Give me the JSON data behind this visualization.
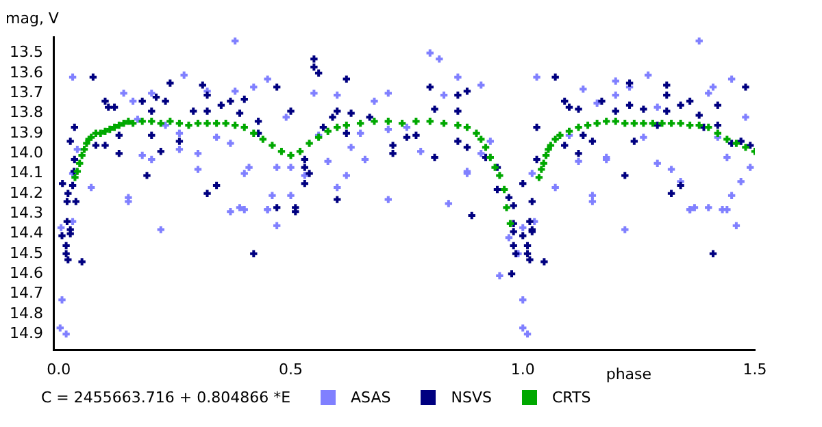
{
  "chart_data": {
    "type": "scatter",
    "xlabel": "phase",
    "ylabel": "mag, V",
    "marker": "cross",
    "legend": "bottom",
    "grid": false,
    "annotations": [
      "C = 2455663.716 + 0.804866 *E"
    ],
    "xlim": [
      -0.01,
      1.5
    ],
    "xticks": [
      {
        "value": 0,
        "label": "0.0"
      },
      0.5,
      {
        "value": 1,
        "label": "1.0"
      },
      1.5
    ],
    "ylim": [
      14.98,
      13.42
    ],
    "yticks": [
      13.5,
      13.6,
      13.7,
      13.8,
      13.9,
      {
        "value": 14,
        "label": "14.0"
      },
      14.1,
      14.2,
      14.3,
      14.4,
      14.5,
      14.6,
      14.7,
      14.8,
      14.9
    ],
    "series": [
      {
        "name": "ASAS",
        "color": "#8080ff",
        "x": [
          0.03,
          0.38,
          0.27,
          0.14,
          0.04,
          0.07,
          0.03,
          0.15,
          0.15,
          0.16,
          0.17,
          0.2,
          0.18,
          0.2,
          0.23,
          0.26,
          0.26,
          0.3,
          0.3,
          0.32,
          0.34,
          0.38,
          0.37,
          0.41,
          0.4,
          0.4,
          0.42,
          0.45,
          0.45,
          0.46,
          0.47,
          0.49,
          0.5,
          0.5,
          0.53,
          0.55,
          0.56,
          0.58,
          0.6,
          0.6,
          0.62,
          0.63,
          0.65,
          0.66,
          0.68,
          0.71,
          0.71,
          0.71,
          0.8,
          0.82,
          0.83,
          0.78,
          0.75,
          0.84,
          0.86,
          0.88,
          0.88,
          0.91,
          0.91,
          0.93,
          1.03,
          1.02,
          1.07,
          1.13,
          1.1,
          1.12,
          1.15,
          1.15,
          1.16,
          1.18,
          1.18,
          1.2,
          1.2,
          1.23,
          1.26,
          1.27,
          1.29,
          1.29,
          1.32,
          1.34,
          1.38,
          1.36,
          1.4,
          1.4,
          1.41,
          1.42,
          1.44,
          1.45,
          1.44,
          1.47,
          1.45,
          1.48,
          1.49,
          1.47,
          0.005,
          0.03,
          0.007,
          0.003,
          0.016,
          0.22,
          0.37,
          0.39,
          0.45,
          0.47,
          0.97,
          1.0,
          1.025,
          0.99,
          0.95,
          1.0,
          1.0,
          1.01,
          1.22,
          1.36,
          1.37,
          1.43,
          1.46
        ],
        "values": [
          13.62,
          13.44,
          13.61,
          13.7,
          13.98,
          14.17,
          14.1,
          14.22,
          14.24,
          13.74,
          13.83,
          13.7,
          14.01,
          14.03,
          13.86,
          13.98,
          13.9,
          14.08,
          14.0,
          13.69,
          13.92,
          13.69,
          13.95,
          14.07,
          14.1,
          14.28,
          13.67,
          14.28,
          13.63,
          14.21,
          14.07,
          13.82,
          14.07,
          14.21,
          14.11,
          13.7,
          13.91,
          14.04,
          13.71,
          14.17,
          14.11,
          13.97,
          13.9,
          14.03,
          13.74,
          13.7,
          14.23,
          13.88,
          13.5,
          13.53,
          13.71,
          13.99,
          13.87,
          14.25,
          13.62,
          14.09,
          14.1,
          13.66,
          14.0,
          13.94,
          13.62,
          14.1,
          14.17,
          13.68,
          13.91,
          14.04,
          14.21,
          14.24,
          13.75,
          14.02,
          14.03,
          13.71,
          13.64,
          13.67,
          13.92,
          13.61,
          14.05,
          13.77,
          14.08,
          14.14,
          13.44,
          14.28,
          14.27,
          13.7,
          13.67,
          13.92,
          14.02,
          13.63,
          14.28,
          14.14,
          14.21,
          13.82,
          14.07,
          13.94,
          14.37,
          14.34,
          14.73,
          14.87,
          14.9,
          14.38,
          14.29,
          14.27,
          14.28,
          14.36,
          14.42,
          14.37,
          14.34,
          14.5,
          14.61,
          14.73,
          14.87,
          14.9,
          14.38,
          14.28,
          14.27,
          14.28,
          14.36
        ]
      },
      {
        "name": "NSVS",
        "color": "#000080",
        "x": [
          0.008,
          0.02,
          0.018,
          0.037,
          0.03,
          0.033,
          0.034,
          0.025,
          0.034,
          0.074,
          0.1,
          0.107,
          0.08,
          0.1,
          0.13,
          0.13,
          0.12,
          0.18,
          0.2,
          0.21,
          0.2,
          0.19,
          0.22,
          0.23,
          0.24,
          0.26,
          0.29,
          0.31,
          0.32,
          0.32,
          0.35,
          0.37,
          0.39,
          0.4,
          0.43,
          0.43,
          0.34,
          0.32,
          0.47,
          0.5,
          0.53,
          0.53,
          0.53,
          0.54,
          0.55,
          0.55,
          0.56,
          0.47,
          0.51,
          0.51,
          0.57,
          0.59,
          0.6,
          0.62,
          0.62,
          0.63,
          0.67,
          0.72,
          0.72,
          0.6,
          0.75,
          0.8,
          0.81,
          0.81,
          0.77,
          0.86,
          0.86,
          0.88,
          0.88,
          0.89,
          0.86,
          0.92,
          0.945,
          0.945,
          0.97,
          0.98,
          1.0,
          1.02,
          1.03,
          1.03,
          1.07,
          1.09,
          1.1,
          1.09,
          1.12,
          1.13,
          1.15,
          1.12,
          1.17,
          1.2,
          1.23,
          1.23,
          1.22,
          1.24,
          1.26,
          1.29,
          1.31,
          1.31,
          1.31,
          1.34,
          1.36,
          1.38,
          1.39,
          1.42,
          1.42,
          1.47,
          1.49,
          1.48,
          1.45,
          1.32,
          1.34,
          0.018,
          0.007,
          0.025,
          0.025,
          0.016,
          0.016,
          0.02,
          0.05,
          0.42,
          0.98,
          0.98,
          1.0,
          1.015,
          1.02,
          1.02,
          0.98,
          0.985,
          1.01,
          1.01,
          1.015,
          1.046,
          0.976,
          1.41
        ],
        "values": [
          14.15,
          14.2,
          14.24,
          14.24,
          14.16,
          14.09,
          14.03,
          13.94,
          13.87,
          13.62,
          13.74,
          13.77,
          13.96,
          13.96,
          13.91,
          14.0,
          13.77,
          13.74,
          13.79,
          13.72,
          13.91,
          14.11,
          13.99,
          13.74,
          13.65,
          13.94,
          13.79,
          13.66,
          13.71,
          13.79,
          13.76,
          13.74,
          13.8,
          13.73,
          13.84,
          13.9,
          14.16,
          14.2,
          13.67,
          13.79,
          14.03,
          14.07,
          14.15,
          14.1,
          13.53,
          13.57,
          13.6,
          14.27,
          14.27,
          14.29,
          13.87,
          13.82,
          13.79,
          13.63,
          13.9,
          13.8,
          13.82,
          13.96,
          14.0,
          14.23,
          13.92,
          13.67,
          13.78,
          14.02,
          13.91,
          13.71,
          13.79,
          13.69,
          13.97,
          14.31,
          13.94,
          14.02,
          14.07,
          14.18,
          14.22,
          14.26,
          14.15,
          14.24,
          13.87,
          14.03,
          13.62,
          13.74,
          13.77,
          13.96,
          13.78,
          13.91,
          13.94,
          14.0,
          13.74,
          13.79,
          13.65,
          13.76,
          14.11,
          13.94,
          13.78,
          13.86,
          13.66,
          13.71,
          13.79,
          13.76,
          13.74,
          13.81,
          13.87,
          13.76,
          13.86,
          13.94,
          13.96,
          13.67,
          13.95,
          14.2,
          14.16,
          14.34,
          14.41,
          14.4,
          14.38,
          14.46,
          14.5,
          14.53,
          14.54,
          14.5,
          14.35,
          14.39,
          14.41,
          14.34,
          14.38,
          14.39,
          14.46,
          14.5,
          14.46,
          14.5,
          14.53,
          14.54,
          14.6,
          14.5
        ]
      },
      {
        "name": "CRTS",
        "color": "#00a800",
        "x": [
          0.035,
          0.04,
          0.045,
          0.05,
          0.055,
          0.06,
          0.065,
          0.07,
          0.08,
          0.09,
          0.1,
          0.11,
          0.12,
          0.13,
          0.14,
          0.15,
          0.16,
          0.18,
          0.2,
          0.22,
          0.24,
          0.26,
          0.28,
          0.3,
          0.32,
          0.34,
          0.36,
          0.38,
          0.4,
          0.42,
          0.44,
          0.46,
          0.48,
          0.5,
          0.52,
          0.54,
          0.56,
          0.58,
          0.6,
          0.62,
          0.65,
          0.68,
          0.71,
          0.74,
          0.77,
          0.8,
          0.83,
          0.86,
          0.88,
          0.9,
          0.91,
          0.92,
          0.93,
          0.94,
          0.95,
          0.96,
          0.965,
          0.973,
          1.035,
          1.04,
          1.045,
          1.05,
          1.055,
          1.06,
          1.07,
          1.08,
          1.1,
          1.12,
          1.14,
          1.16,
          1.18,
          1.2,
          1.22,
          1.24,
          1.26,
          1.28,
          1.3,
          1.32,
          1.34,
          1.36,
          1.38,
          1.4,
          1.42,
          1.44,
          1.46,
          1.48,
          1.5
        ],
        "values": [
          14.12,
          14.09,
          14.05,
          14.01,
          13.98,
          13.95,
          13.93,
          13.92,
          13.9,
          13.9,
          13.89,
          13.88,
          13.87,
          13.86,
          13.85,
          13.84,
          13.85,
          13.84,
          13.84,
          13.85,
          13.84,
          13.85,
          13.86,
          13.85,
          13.85,
          13.85,
          13.85,
          13.86,
          13.87,
          13.9,
          13.93,
          13.96,
          13.99,
          14.01,
          13.99,
          13.95,
          13.92,
          13.89,
          13.87,
          13.86,
          13.85,
          13.84,
          13.84,
          13.85,
          13.84,
          13.84,
          13.85,
          13.86,
          13.87,
          13.9,
          13.93,
          13.97,
          14.02,
          14.07,
          14.11,
          14.18,
          14.27,
          14.35,
          14.12,
          14.08,
          14.05,
          14.01,
          13.98,
          13.96,
          13.93,
          13.91,
          13.89,
          13.87,
          13.86,
          13.85,
          13.84,
          13.84,
          13.85,
          13.85,
          13.85,
          13.85,
          13.85,
          13.85,
          13.85,
          13.86,
          13.86,
          13.87,
          13.9,
          13.93,
          13.95,
          13.97,
          13.99
        ]
      }
    ]
  }
}
